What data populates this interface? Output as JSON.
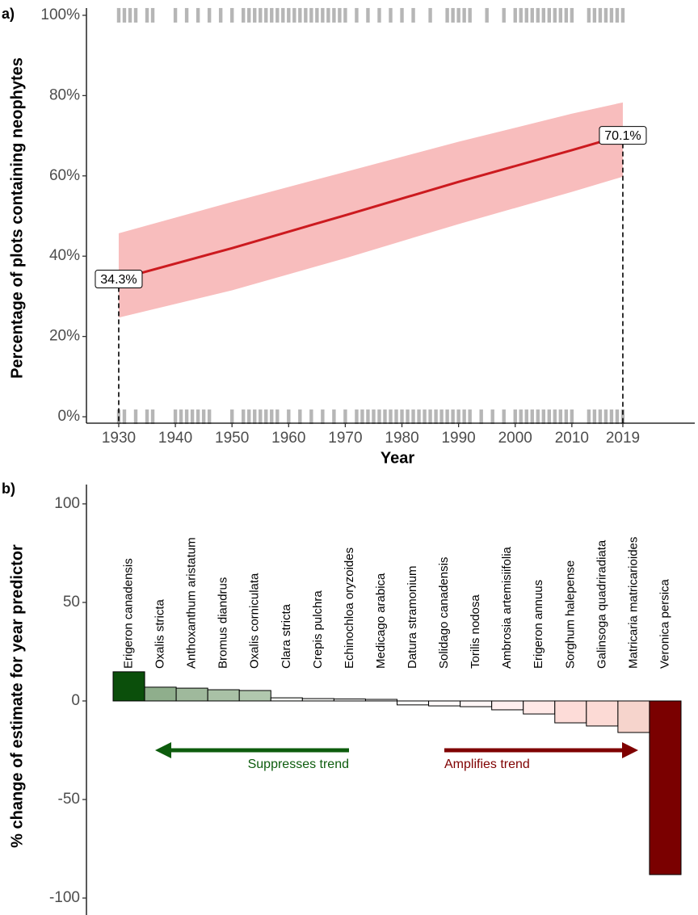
{
  "chart_data": [
    {
      "type": "line",
      "panel": "a)",
      "y_label": "Percentage of plots containing neophytes",
      "x_label": "Year",
      "x": [
        1930,
        1950,
        1970,
        1990,
        2010,
        2019
      ],
      "values": [
        34.3,
        42.0,
        50.2,
        58.5,
        66.4,
        70.1
      ],
      "lower": [
        24.7,
        31.5,
        39.5,
        48.0,
        56.0,
        59.8
      ],
      "upper": [
        45.7,
        53.5,
        61.0,
        68.5,
        75.5,
        78.3
      ],
      "line_color": "#cc1a1f",
      "band_color": "#f8bdbd",
      "annotations": [
        {
          "x": 1930,
          "value": 34.3,
          "label": "34.3%"
        },
        {
          "x": 2019,
          "value": 70.1,
          "label": "70.1%"
        }
      ],
      "observations": [
        {
          "y": 100,
          "x": [
            1930,
            1931,
            1932,
            1933,
            1935,
            1936,
            1940,
            1942,
            1944,
            1946,
            1948,
            1950,
            1952,
            1953,
            1954,
            1955,
            1956,
            1957,
            1958,
            1959,
            1960,
            1961,
            1962,
            1963,
            1964,
            1965,
            1966,
            1967,
            1968,
            1969,
            1970,
            1972,
            1974,
            1976,
            1978,
            1980,
            1982,
            1985,
            1988,
            1989,
            1990,
            1991,
            1992,
            1995,
            1998,
            2000,
            2001,
            2002,
            2003,
            2004,
            2005,
            2006,
            2007,
            2008,
            2009,
            2010,
            2013,
            2014,
            2015,
            2016,
            2017,
            2018,
            2019
          ]
        },
        {
          "y": 0,
          "x": [
            1930,
            1931,
            1933,
            1935,
            1936,
            1940,
            1941,
            1942,
            1943,
            1944,
            1945,
            1946,
            1950,
            1952,
            1953,
            1954,
            1955,
            1956,
            1957,
            1958,
            1960,
            1962,
            1964,
            1966,
            1968,
            1970,
            1972,
            1973,
            1974,
            1975,
            1976,
            1977,
            1978,
            1979,
            1980,
            1981,
            1982,
            1983,
            1984,
            1985,
            1986,
            1987,
            1988,
            1989,
            1990,
            1991,
            1992,
            1994,
            1996,
            1998,
            2000,
            2001,
            2002,
            2003,
            2004,
            2005,
            2006,
            2007,
            2008,
            2009,
            2010,
            2013,
            2014,
            2015,
            2016,
            2017,
            2018,
            2019
          ]
        }
      ],
      "xlim": [
        1924.3,
        2031.7
      ],
      "ylim": [
        -1.6,
        101.8
      ],
      "xticks": [
        1930,
        1940,
        1950,
        1960,
        1970,
        1980,
        1990,
        2000,
        2010,
        2019
      ],
      "yticks": [
        {
          "value": 0,
          "label": "0%"
        },
        {
          "value": 20,
          "label": "20%"
        },
        {
          "value": 40,
          "label": "40%"
        },
        {
          "value": 60,
          "label": "60%"
        },
        {
          "value": 80,
          "label": "80%"
        },
        {
          "value": 100,
          "label": "100%"
        }
      ]
    },
    {
      "type": "bar",
      "panel": "b)",
      "y_label": "% change of estimate for year predictor",
      "categories": [
        "Erigeron canadensis",
        "Oxalis stricta",
        "Anthoxanthum aristatum",
        "Bromus diandrus",
        "Oxalis corniculata",
        "Clara stricta",
        "Crepis pulchra",
        "Echinochloa oryzoides",
        "Medicago arabica",
        "Datura stramonium",
        "Solidago canadensis",
        "Torilis nodosa",
        "Ambrosia artemisiifolia",
        "Erigeron annuus",
        "Sorghum halepense",
        "Galinsoga quadriradiata",
        "Matricaria matricarioides",
        "Veronica persica"
      ],
      "values": [
        14.8,
        7.0,
        6.5,
        5.7,
        5.3,
        1.6,
        1.2,
        1.0,
        0.8,
        -2.0,
        -2.5,
        -2.9,
        -4.5,
        -6.6,
        -11.1,
        -12.7,
        -16.0,
        -88.1
      ],
      "colors": [
        "#0b4f0b",
        "#8fae8c",
        "#9fb99c",
        "#a9c1a6",
        "#b1c8ae",
        "#f3f6f2",
        "#f6f8f5",
        "#fafbfa",
        "#fdfdfd",
        "#fffdfd",
        "#fffafa",
        "#fff6f6",
        "#ffefef",
        "#ffe8e6",
        "#fddcd8",
        "#fcdad5",
        "#f6d4cc",
        "#7a0000"
      ],
      "arrows": [
        {
          "label": "Suppresses trend",
          "color": "#0d5c0d"
        },
        {
          "label": "Amplifies trend",
          "color": "#7f0000"
        }
      ],
      "ylim": [
        -108.6,
        109.8
      ],
      "yticks": [
        -100,
        -50,
        0,
        50,
        100
      ]
    }
  ]
}
